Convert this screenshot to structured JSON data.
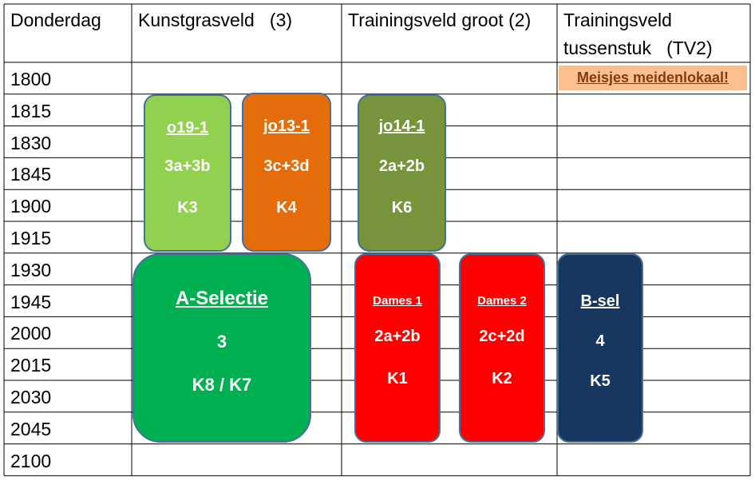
{
  "header": [
    "Donderdag",
    "Kunstgrasveld   (3)",
    "Trainingsveld groot (2)",
    "Trainingsveld tussenstuk   (TV2)"
  ],
  "times": [
    "1800",
    "1815",
    "1830",
    "1845",
    "1900",
    "1915",
    "1930",
    "1945",
    "2000",
    "2015",
    "2030",
    "2045",
    "2100"
  ],
  "note": "Meisjes meidenlokaal!",
  "blocks": [
    {
      "team": "o19-1",
      "groups": "3a+3b",
      "field": "K3"
    },
    {
      "team": "jo13-1",
      "groups": "3c+3d",
      "field": "K4"
    },
    {
      "team": "jo14-1",
      "groups": "2a+2b",
      "field": "K6"
    },
    {
      "team": "A-Selectie",
      "groups": "3",
      "field": "K8 / K7"
    },
    {
      "team": "Dames 1",
      "groups": "2a+2b",
      "field": "K1"
    },
    {
      "team": "Dames 2",
      "groups": "2c+2d",
      "field": "K2"
    },
    {
      "team": "B-sel",
      "groups": "4",
      "field": "K5"
    }
  ]
}
